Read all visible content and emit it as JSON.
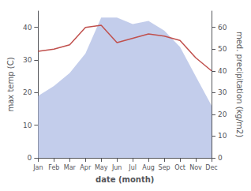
{
  "chart_data": {
    "type": "line",
    "xlabel": "date (month)",
    "ylabel": "max temp (C)",
    "y2label": "med. precipitation (kg/m2)",
    "categories": [
      "Jan",
      "Feb",
      "Mar",
      "Apr",
      "May",
      "Jun",
      "Jul",
      "Aug",
      "Sep",
      "Oct",
      "Nov",
      "Dec"
    ],
    "series": [
      {
        "type": "area",
        "color": "#b8c4e8",
        "values": [
          19,
          22,
          26,
          32,
          43,
          43,
          41,
          42,
          39,
          34,
          25,
          16
        ]
      },
      {
        "type": "line",
        "color": "#c0504d",
        "axis": "y2",
        "values": [
          49,
          50,
          52,
          60,
          61,
          53,
          55,
          57,
          56,
          54,
          46,
          40
        ]
      }
    ],
    "ylim": [
      0,
      45
    ],
    "yticks": [
      0,
      10,
      20,
      30,
      40
    ],
    "y2lim": [
      0,
      67.5
    ],
    "y2ticks": [
      0,
      10,
      20,
      30,
      40,
      50,
      60
    ],
    "grid": false
  }
}
